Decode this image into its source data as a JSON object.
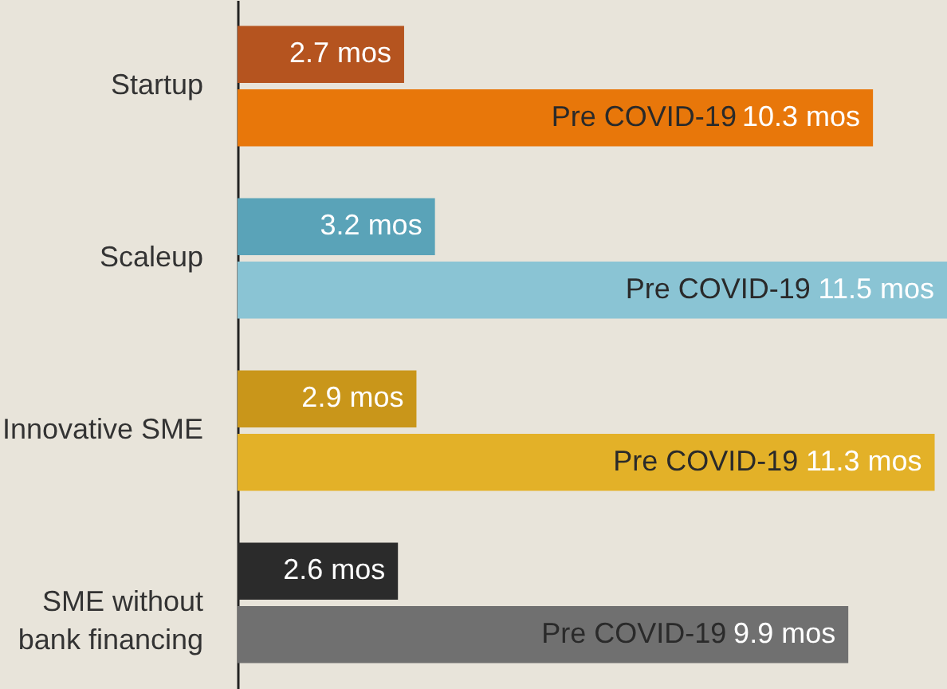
{
  "chart_data": {
    "type": "bar",
    "orientation": "horizontal",
    "categories": [
      "Startup",
      "Scaleup",
      "Innovative SME",
      "SME without bank financing"
    ],
    "series": [
      {
        "colors": [
          "#b5541f",
          "#5aa3b8",
          "#c9961a",
          "#2b2b2b"
        ],
        "values": [
          2.7,
          3.2,
          2.9,
          2.6
        ],
        "value_labels": [
          "2.7 mos",
          "3.2 mos",
          "2.9 mos",
          "2.6 mos"
        ]
      },
      {
        "name": "Pre COVID-19",
        "colors": [
          "#e8770a",
          "#8ac4d4",
          "#e3b128",
          "#707070"
        ],
        "values": [
          10.3,
          11.5,
          11.3,
          9.9
        ],
        "value_labels": [
          "10.3 mos",
          "11.5 mos",
          "11.3 mos",
          "9.9 mos"
        ]
      }
    ],
    "legend": false,
    "grid": false
  }
}
